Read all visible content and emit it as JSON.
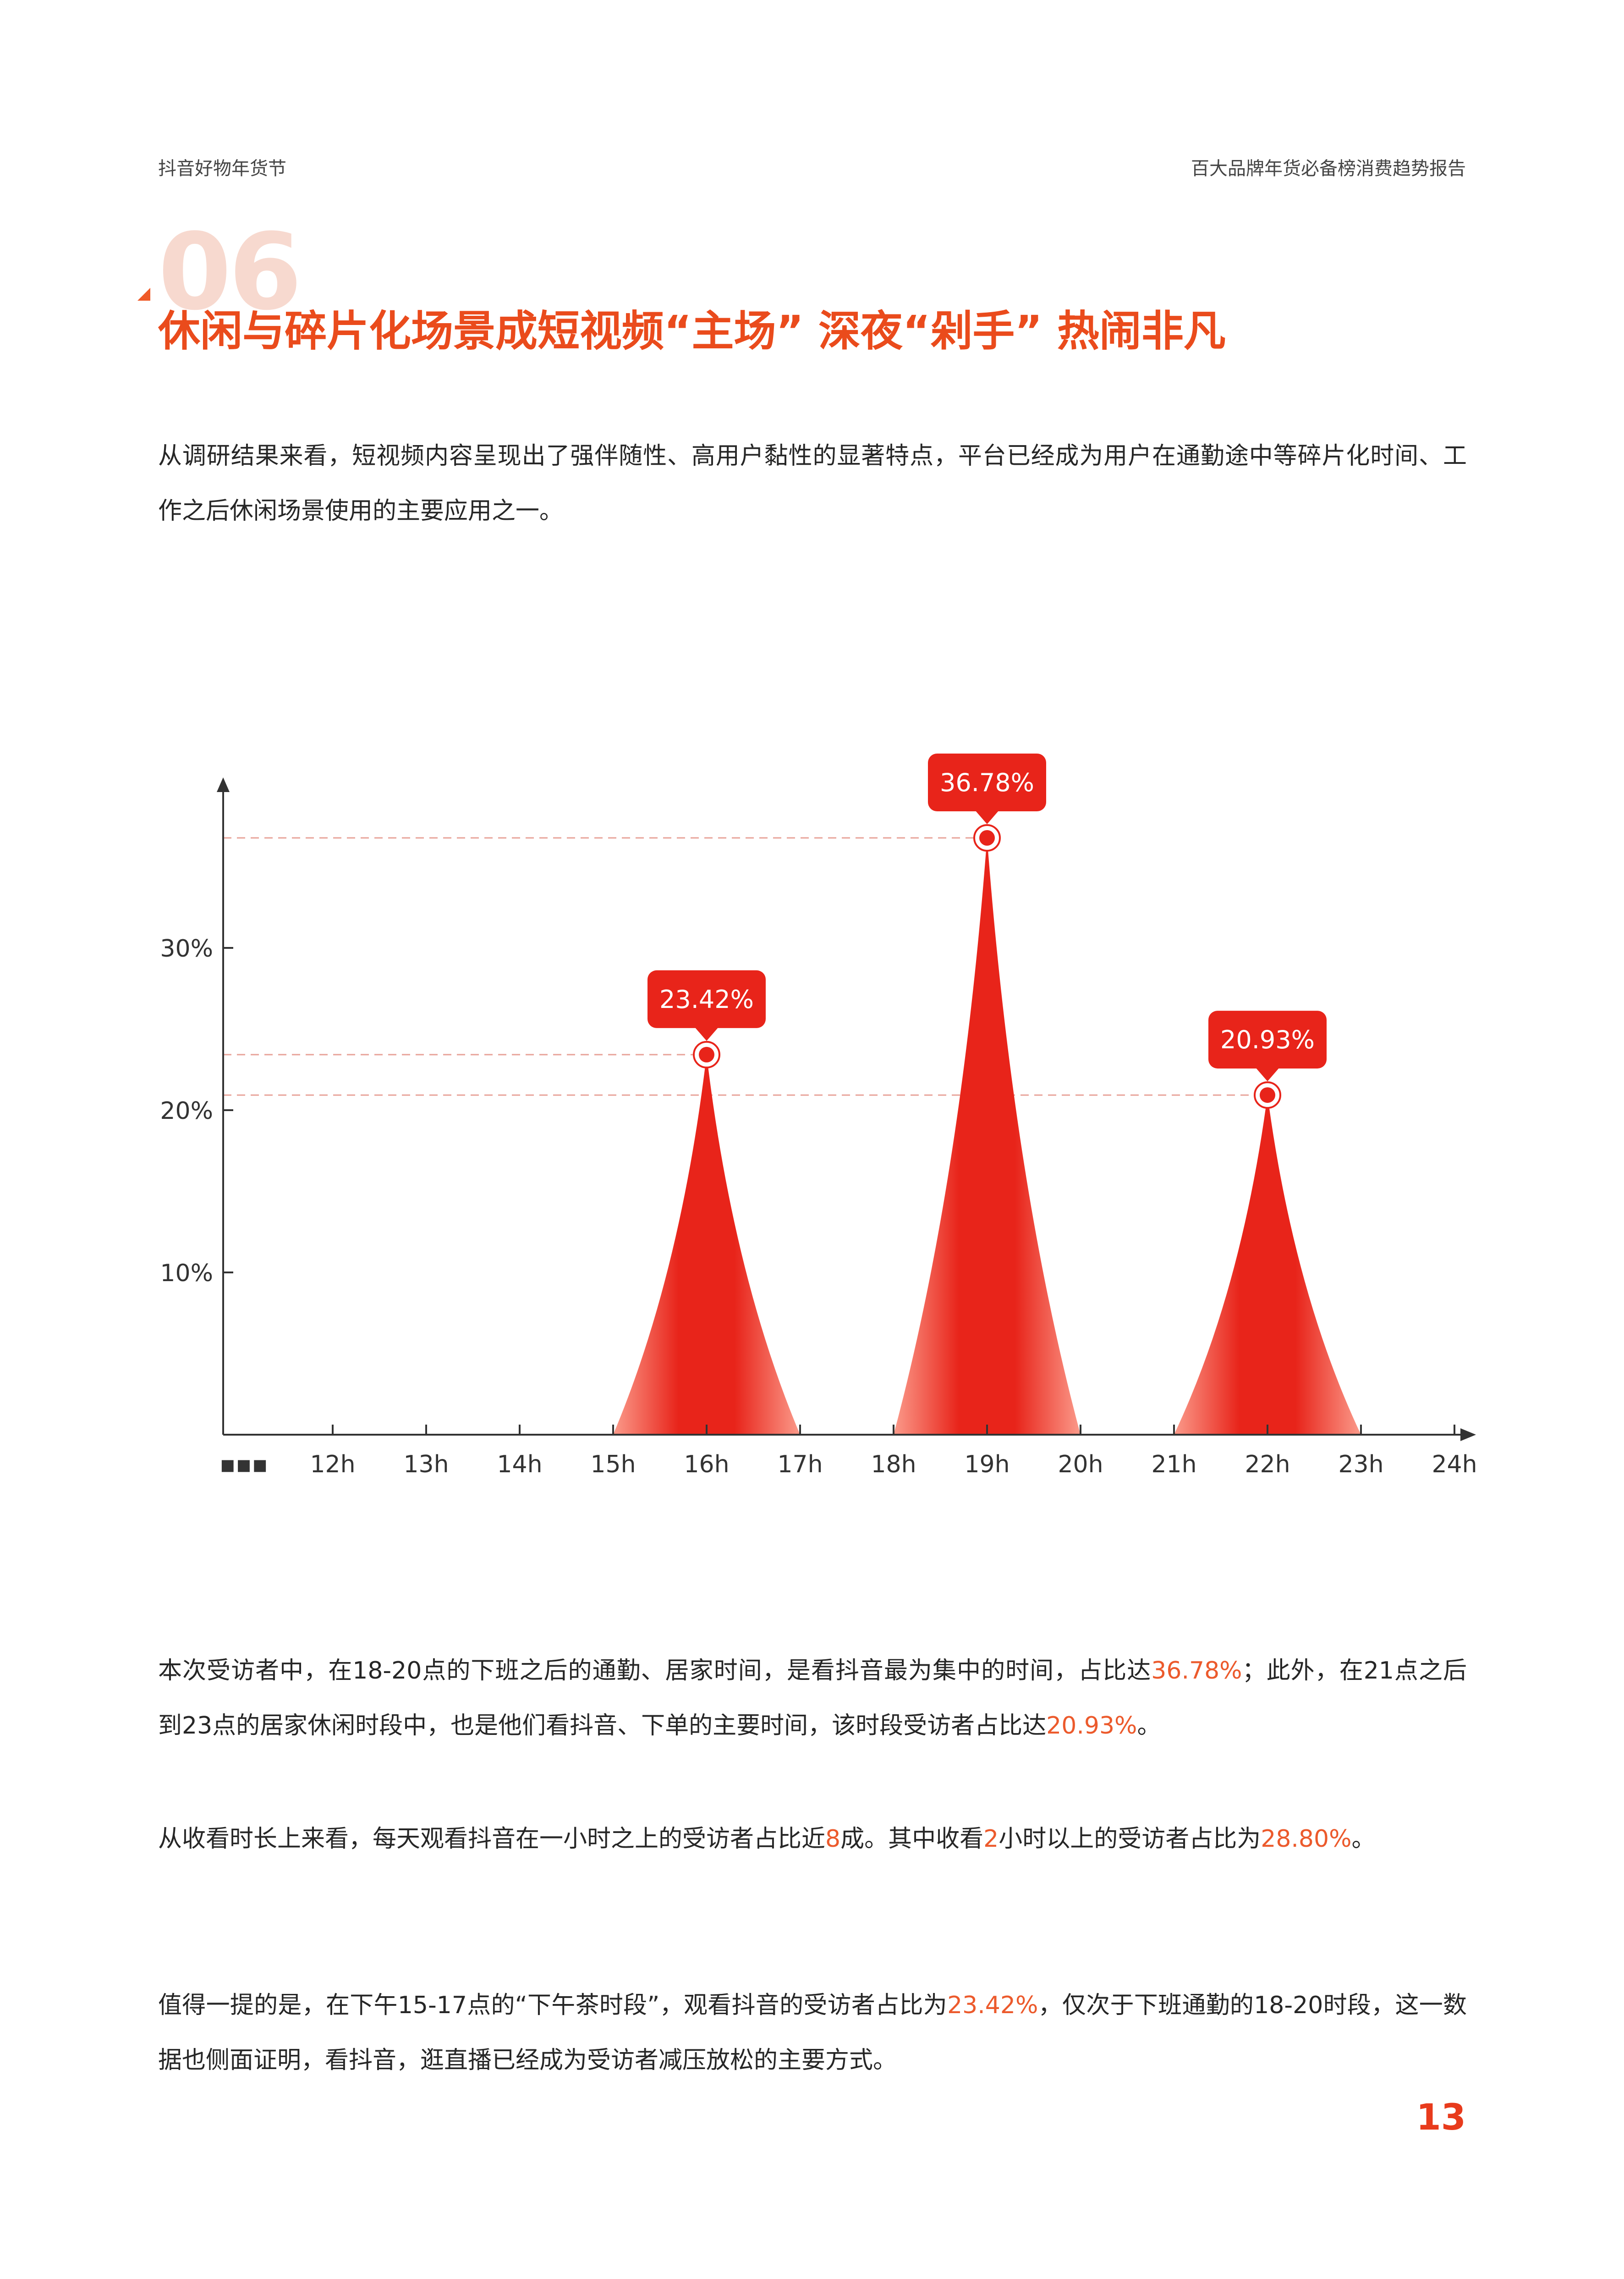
{
  "header": {
    "left": "抖音好物年货节",
    "right": "百大品牌年货必备榜消费趋势报告"
  },
  "section": {
    "number": "06",
    "title": "休闲与碎片化场景成短视频“主场” 深夜“剁手” 热闹非凡"
  },
  "intro": "从调研结果来看，短视频内容呈现出了强伴随性、高用户黏性的显著特点，平台已经成为用户在通勤途中等碎片化时间、工作之后休闲场景使用的主要应用之一。",
  "paragraphs": {
    "p1": [
      "本次受访者中，在18-20点的下班之后的通勤、居家时间，是看抖音最为集中的时间，占比达",
      "36.78%",
      "；此外，在21点之后到23点的居家休闲时段中，也是他们看抖音、下单的主要时间，该时段受访者占比达",
      "20.93%",
      "。"
    ],
    "p2": [
      "从收看时长上来看，每天观看抖音在一小时之上的受访者占比近",
      "8",
      "成。其中收看",
      "2",
      "小时以上的受访者占比为",
      "28.80%",
      "。"
    ],
    "p3": [
      "值得一提的是，在下午15-17点的“下午茶时段”，观看抖音的受访者占比为",
      "23.42%",
      "，仅次于下班通勤的18-20时段，这一数据也侧面证明，看抖音，逛直播已经成为受访者减压放松的主要方式。"
    ]
  },
  "page_number": "13",
  "colors": {
    "accent": "#ea4b1c",
    "peak_fill": "#e8241a",
    "peak_fill_light": "#fb9a8a",
    "highlight_text": "#ec5a2c",
    "section_number": "#f7d9cf"
  },
  "chart_data": {
    "type": "area",
    "x_ticks": [
      "▪▪▪",
      "12h",
      "13h",
      "14h",
      "15h",
      "16h",
      "17h",
      "18h",
      "19h",
      "20h",
      "21h",
      "22h",
      "23h",
      "24h"
    ],
    "y_ticks": [
      "10%",
      "20%",
      "30%"
    ],
    "ylim": [
      0,
      40
    ],
    "peaks": [
      {
        "label": "23.42%",
        "value": 23.42,
        "start": "15h",
        "peak": "16h",
        "end": "17h"
      },
      {
        "label": "36.78%",
        "value": 36.78,
        "start": "18h",
        "peak": "19h",
        "end": "20h"
      },
      {
        "label": "20.93%",
        "value": 20.93,
        "start": "21h",
        "peak": "22h",
        "end": "23h"
      }
    ]
  }
}
